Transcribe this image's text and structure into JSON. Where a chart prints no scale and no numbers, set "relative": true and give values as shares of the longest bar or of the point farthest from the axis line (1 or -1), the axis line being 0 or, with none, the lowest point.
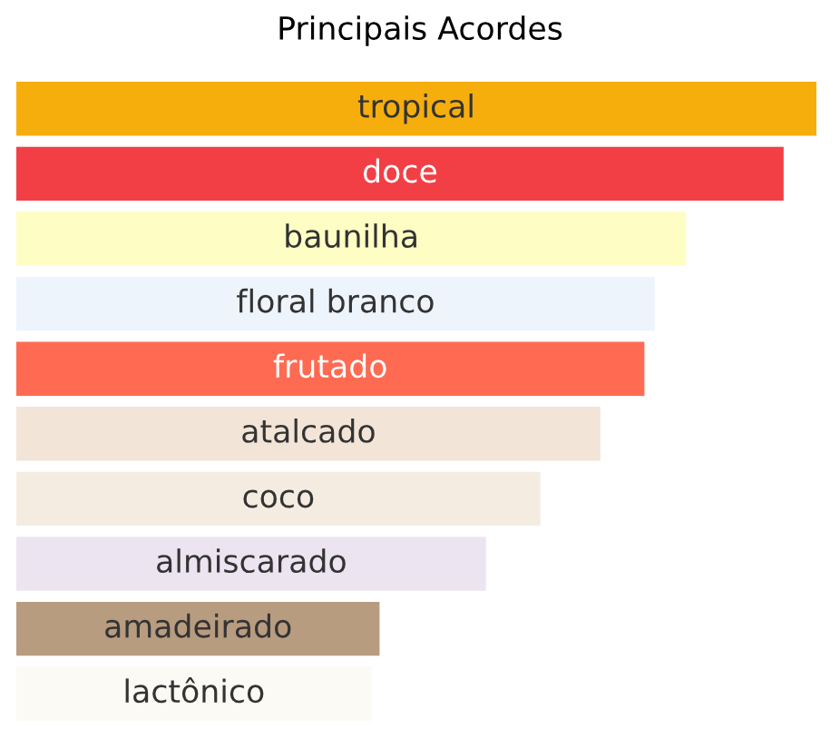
{
  "chart_data": {
    "type": "bar",
    "orientation": "horizontal",
    "relative": true,
    "title": "Principais Acordes",
    "categories": [
      "tropical",
      "doce",
      "baunilha",
      "floral branco",
      "frutado",
      "atalcado",
      "coco",
      "almiscarado",
      "amadeirado",
      "lactônico"
    ],
    "values": [
      1,
      0.959,
      0.837,
      0.798,
      0.785,
      0.73,
      0.655,
      0.587,
      0.454,
      0.444
    ],
    "colors": [
      "#f6ae0c",
      "#f23f46",
      "#fefdc4",
      "#eef4fc",
      "#fe6b52",
      "#f3e4d8",
      "#f5ece1",
      "#ece4f0",
      "#b89c80",
      "#fcfaf4"
    ],
    "legend": false
  }
}
